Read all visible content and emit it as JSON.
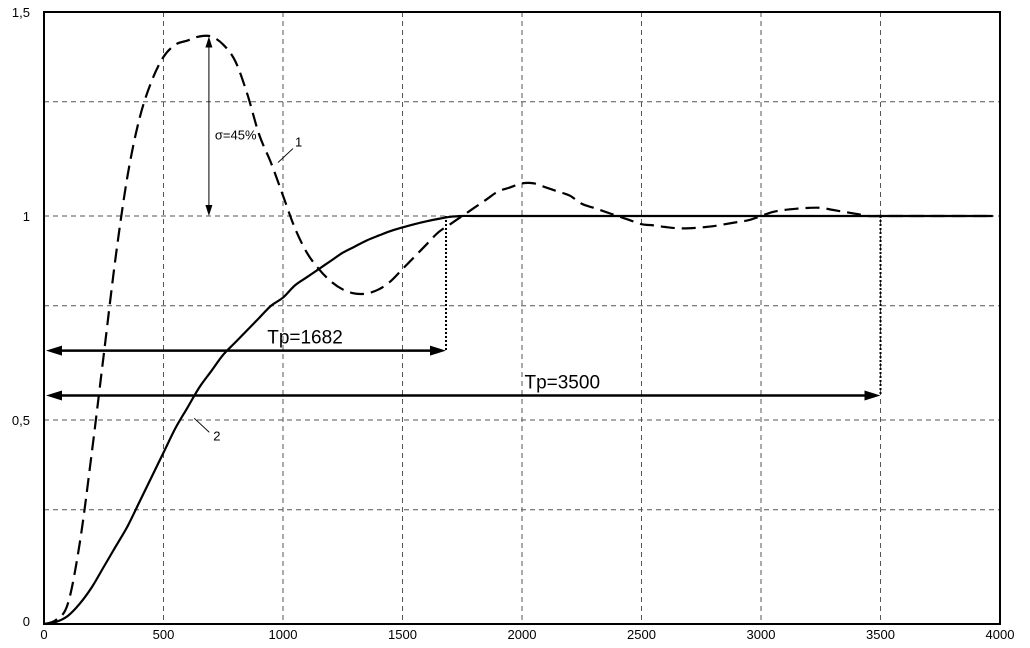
{
  "chart_data": {
    "type": "line",
    "title": "",
    "xlabel": "",
    "ylabel": "",
    "xlim": [
      0,
      4000
    ],
    "ylim": [
      0,
      1.5
    ],
    "grid": true,
    "x_ticks": [
      0,
      500,
      1000,
      1500,
      2000,
      2500,
      3000,
      3500,
      4000
    ],
    "x_tick_labels": [
      "0",
      "500",
      "1000",
      "1500",
      "2000",
      "2500",
      "3000",
      "3500",
      "4000"
    ],
    "y_ticks": [
      0,
      0.5,
      1,
      1.5
    ],
    "y_tick_labels": [
      "0",
      "0,5",
      "1",
      "1,5"
    ],
    "y_grid_extra": [
      0.28,
      0.78,
      1.28
    ],
    "series": [
      {
        "style": "dashed",
        "color": "#000000",
        "x": [
          0,
          50,
          100,
          150,
          200,
          250,
          300,
          350,
          400,
          450,
          500,
          550,
          600,
          650,
          700,
          750,
          800,
          850,
          900,
          950,
          1000,
          1050,
          1100,
          1150,
          1200,
          1250,
          1300,
          1350,
          1400,
          1450,
          1500,
          1550,
          1600,
          1650,
          1700,
          1750,
          1800,
          1850,
          1900,
          1950,
          2000,
          2050,
          2100,
          2150,
          2200,
          2250,
          2300,
          2350,
          2400,
          2450,
          2500,
          2550,
          2600,
          2650,
          2700,
          2750,
          2800,
          2850,
          2900,
          2950,
          3000,
          3050,
          3100,
          3150,
          3200,
          3250,
          3300,
          3350,
          3400,
          3450,
          3500,
          3600,
          3700,
          3800,
          3900,
          3970
        ],
        "y": [
          0,
          0.01,
          0.05,
          0.2,
          0.42,
          0.66,
          0.9,
          1.1,
          1.24,
          1.33,
          1.39,
          1.42,
          1.43,
          1.44,
          1.44,
          1.42,
          1.38,
          1.3,
          1.2,
          1.13,
          1.05,
          0.97,
          0.91,
          0.87,
          0.84,
          0.82,
          0.81,
          0.81,
          0.82,
          0.84,
          0.87,
          0.9,
          0.93,
          0.96,
          0.98,
          1.0,
          1.02,
          1.04,
          1.06,
          1.07,
          1.08,
          1.08,
          1.07,
          1.06,
          1.05,
          1.03,
          1.02,
          1.01,
          1.0,
          0.99,
          0.98,
          0.977,
          0.973,
          0.97,
          0.97,
          0.972,
          0.975,
          0.98,
          0.985,
          0.99,
          1.0,
          1.01,
          1.015,
          1.018,
          1.02,
          1.02,
          1.015,
          1.01,
          1.005,
          1.0,
          1.0,
          1.0,
          1.0,
          1.0,
          1.0,
          1.0
        ]
      },
      {
        "style": "solid",
        "color": "#000000",
        "x": [
          0,
          50,
          100,
          150,
          200,
          250,
          300,
          350,
          400,
          450,
          500,
          550,
          600,
          650,
          700,
          750,
          800,
          850,
          900,
          950,
          1000,
          1050,
          1100,
          1150,
          1200,
          1250,
          1300,
          1350,
          1400,
          1450,
          1500,
          1550,
          1600,
          1650,
          1700,
          1750,
          1800,
          2000,
          2500,
          3000,
          3500,
          3970
        ],
        "y": [
          0,
          0.005,
          0.02,
          0.05,
          0.09,
          0.14,
          0.19,
          0.24,
          0.3,
          0.36,
          0.42,
          0.48,
          0.53,
          0.58,
          0.62,
          0.66,
          0.69,
          0.72,
          0.75,
          0.78,
          0.8,
          0.83,
          0.85,
          0.87,
          0.89,
          0.91,
          0.925,
          0.94,
          0.952,
          0.963,
          0.972,
          0.98,
          0.987,
          0.993,
          0.998,
          1.0,
          1.0,
          1.0,
          1.0,
          1.0,
          1.0,
          1.0
        ]
      }
    ],
    "curve_labels": [
      {
        "text": "1",
        "x": 1050,
        "y": 1.18
      },
      {
        "text": "2",
        "x": 700,
        "y": 0.46
      }
    ],
    "overshoot": {
      "label": "σ=45%",
      "x": 690,
      "y_top": 1.44,
      "y_bottom": 1.0
    },
    "settling_times": [
      {
        "label": "Tp=1682",
        "value": 1682,
        "arrow_y": 0.67,
        "drop_from": 1.0
      },
      {
        "label": "Tp=3500",
        "value": 3500,
        "arrow_y": 0.56,
        "drop_from": 1.0
      }
    ]
  }
}
